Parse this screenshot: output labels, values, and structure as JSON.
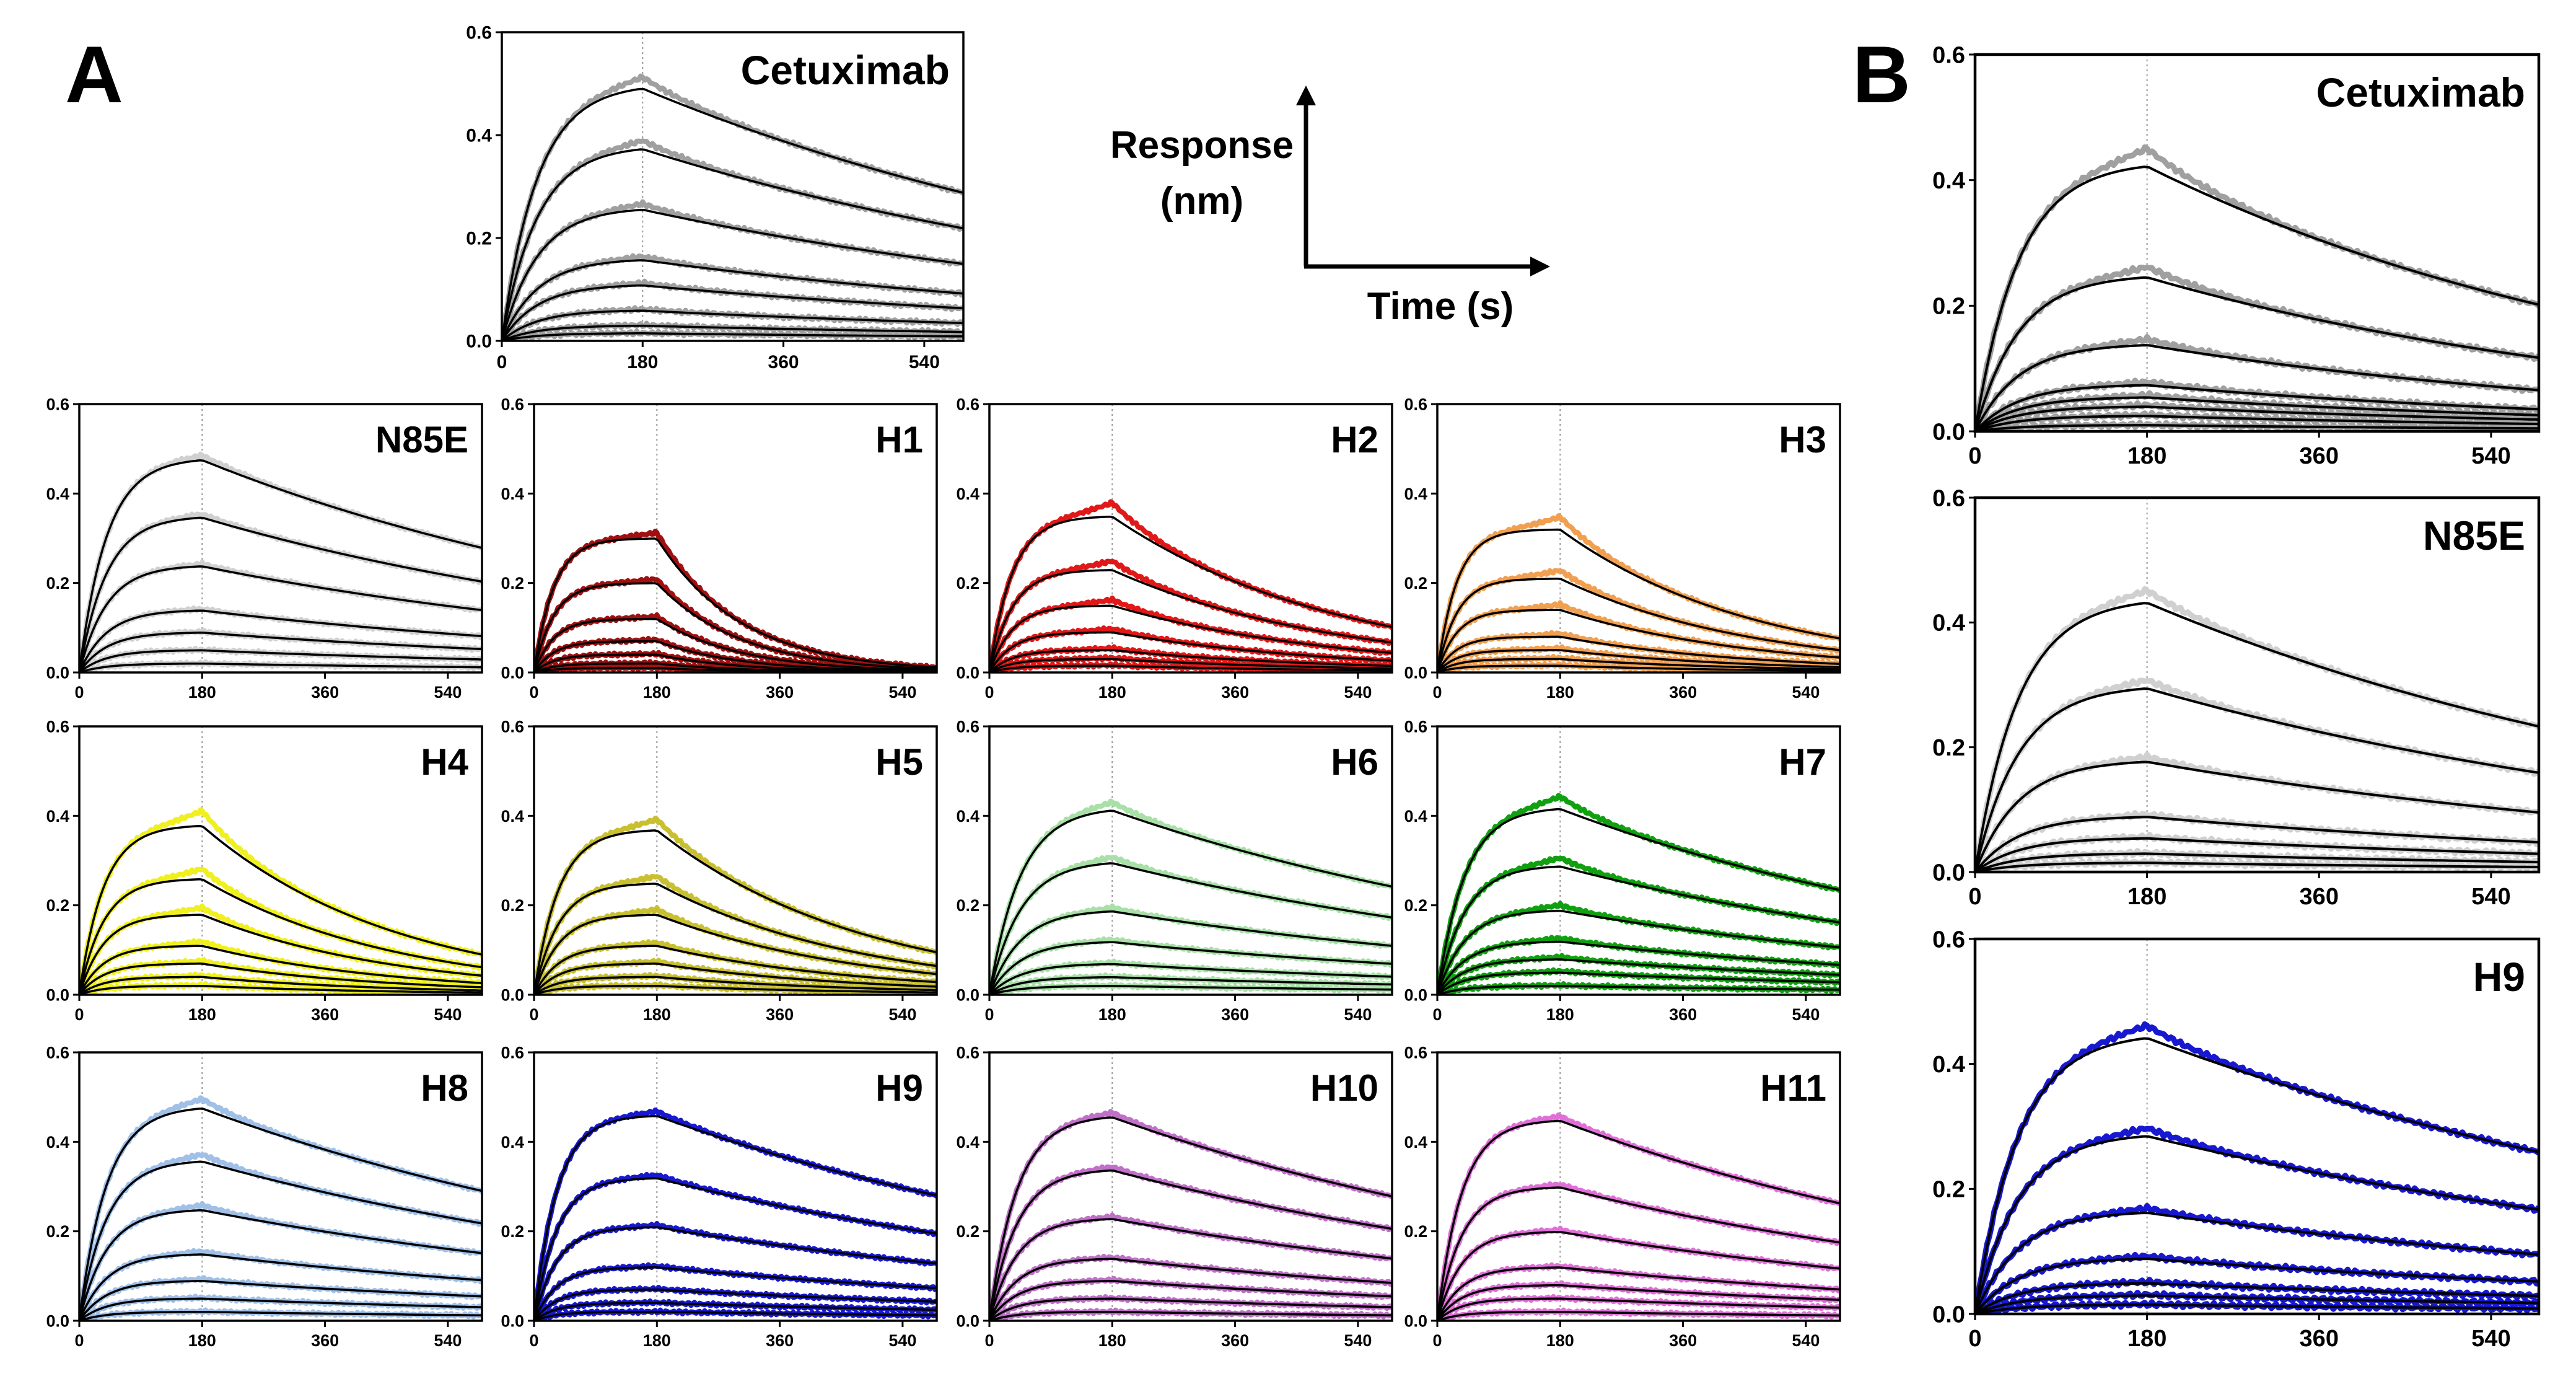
{
  "figure": {
    "panel_a_label": "A",
    "panel_b_label": "B",
    "legend": {
      "y_label_line1": "Response",
      "y_label_line2": "(nm)",
      "x_label": "Time (s)"
    },
    "fit_color": "#000000",
    "guide_color": "#999999"
  },
  "chart_data": [
    {
      "id": "a-cetuximab",
      "type": "line",
      "title": "Cetuximab",
      "color": "#a0a0a0",
      "xlim": [
        0,
        590
      ],
      "ylim": [
        0,
        0.6
      ],
      "x_ticks": [
        "0",
        "180",
        "360",
        "540"
      ],
      "y_ticks": [
        "0.0",
        "0.2",
        "0.4",
        "0.6"
      ],
      "association_end": 180,
      "plateaus": [
        0.5,
        0.38,
        0.26,
        0.16,
        0.11,
        0.06,
        0.03,
        0.015
      ],
      "k_on": 0.022,
      "k_off": 0.0013,
      "overshoot": 0.02
    },
    {
      "id": "a-n85e",
      "type": "line",
      "title": "N85E",
      "color": "#d0d0d0",
      "xlim": [
        0,
        590
      ],
      "ylim": [
        0,
        0.6
      ],
      "x_ticks": [
        "0",
        "180",
        "360",
        "540"
      ],
      "y_ticks": [
        "0.0",
        "0.2",
        "0.4",
        "0.6"
      ],
      "association_end": 180,
      "plateaus": [
        0.48,
        0.35,
        0.24,
        0.14,
        0.09,
        0.05,
        0.02
      ],
      "k_on": 0.025,
      "k_off": 0.0013,
      "overshoot": 0.01
    },
    {
      "id": "a-h1",
      "type": "line",
      "title": "H1",
      "color": "#a01010",
      "xlim": [
        0,
        590
      ],
      "ylim": [
        0,
        0.6
      ],
      "x_ticks": [
        "0",
        "180",
        "360",
        "540"
      ],
      "y_ticks": [
        "0.0",
        "0.2",
        "0.4",
        "0.6"
      ],
      "association_end": 180,
      "plateaus": [
        0.3,
        0.2,
        0.12,
        0.07,
        0.04,
        0.02,
        0.01
      ],
      "k_on": 0.035,
      "k_off": 0.008,
      "overshoot": 0.02
    },
    {
      "id": "a-h2",
      "type": "line",
      "title": "H2",
      "color": "#e01818",
      "xlim": [
        0,
        590
      ],
      "ylim": [
        0,
        0.6
      ],
      "x_ticks": [
        "0",
        "180",
        "360",
        "540"
      ],
      "y_ticks": [
        "0.0",
        "0.2",
        "0.4",
        "0.6"
      ],
      "association_end": 180,
      "plateaus": [
        0.35,
        0.23,
        0.15,
        0.09,
        0.05,
        0.03,
        0.015
      ],
      "k_on": 0.03,
      "k_off": 0.003,
      "overshoot": 0.04
    },
    {
      "id": "a-h3",
      "type": "line",
      "title": "H3",
      "color": "#f0a050",
      "xlim": [
        0,
        590
      ],
      "ylim": [
        0,
        0.6
      ],
      "x_ticks": [
        "0",
        "180",
        "360",
        "540"
      ],
      "y_ticks": [
        "0.0",
        "0.2",
        "0.4",
        "0.6"
      ],
      "association_end": 180,
      "plateaus": [
        0.32,
        0.21,
        0.14,
        0.08,
        0.05,
        0.03,
        0.015
      ],
      "k_on": 0.035,
      "k_off": 0.0035,
      "overshoot": 0.04
    },
    {
      "id": "a-h4",
      "type": "line",
      "title": "H4",
      "color": "#f0f020",
      "xlim": [
        0,
        590
      ],
      "ylim": [
        0,
        0.6
      ],
      "x_ticks": [
        "0",
        "180",
        "360",
        "540"
      ],
      "y_ticks": [
        "0.0",
        "0.2",
        "0.4",
        "0.6"
      ],
      "association_end": 180,
      "plateaus": [
        0.38,
        0.26,
        0.18,
        0.11,
        0.07,
        0.04,
        0.02
      ],
      "k_on": 0.028,
      "k_off": 0.0035,
      "overshoot": 0.04
    },
    {
      "id": "a-h5",
      "type": "line",
      "title": "H5",
      "color": "#c8c030",
      "xlim": [
        0,
        590
      ],
      "ylim": [
        0,
        0.6
      ],
      "x_ticks": [
        "0",
        "180",
        "360",
        "540"
      ],
      "y_ticks": [
        "0.0",
        "0.2",
        "0.4",
        "0.6"
      ],
      "association_end": 180,
      "plateaus": [
        0.37,
        0.25,
        0.18,
        0.11,
        0.07,
        0.04,
        0.02
      ],
      "k_on": 0.028,
      "k_off": 0.0033,
      "overshoot": 0.03
    },
    {
      "id": "a-h6",
      "type": "line",
      "title": "H6",
      "color": "#a8e0a8",
      "xlim": [
        0,
        590
      ],
      "ylim": [
        0,
        0.6
      ],
      "x_ticks": [
        "0",
        "180",
        "360",
        "540"
      ],
      "y_ticks": [
        "0.0",
        "0.2",
        "0.4",
        "0.6"
      ],
      "association_end": 180,
      "plateaus": [
        0.42,
        0.3,
        0.19,
        0.12,
        0.07,
        0.04,
        0.02
      ],
      "k_on": 0.022,
      "k_off": 0.0013,
      "overshoot": 0.02
    },
    {
      "id": "a-h7",
      "type": "line",
      "title": "H7",
      "color": "#10a010",
      "xlim": [
        0,
        590
      ],
      "ylim": [
        0,
        0.6
      ],
      "x_ticks": [
        "0",
        "180",
        "360",
        "540"
      ],
      "y_ticks": [
        "0.0",
        "0.2",
        "0.4",
        "0.6"
      ],
      "association_end": 180,
      "plateaus": [
        0.42,
        0.29,
        0.19,
        0.12,
        0.08,
        0.05,
        0.02
      ],
      "k_on": 0.025,
      "k_off": 0.0014,
      "overshoot": 0.03
    },
    {
      "id": "a-h8",
      "type": "line",
      "title": "H8",
      "color": "#a0c0e8",
      "xlim": [
        0,
        590
      ],
      "ylim": [
        0,
        0.6
      ],
      "x_ticks": [
        "0",
        "180",
        "360",
        "540"
      ],
      "y_ticks": [
        "0.0",
        "0.2",
        "0.4",
        "0.6"
      ],
      "association_end": 180,
      "plateaus": [
        0.48,
        0.36,
        0.25,
        0.15,
        0.09,
        0.05,
        0.02
      ],
      "k_on": 0.025,
      "k_off": 0.0012,
      "overshoot": 0.02
    },
    {
      "id": "a-h9",
      "type": "line",
      "title": "H9",
      "color": "#1818d0",
      "xlim": [
        0,
        590
      ],
      "ylim": [
        0,
        0.6
      ],
      "x_ticks": [
        "0",
        "180",
        "360",
        "540"
      ],
      "y_ticks": [
        "0.0",
        "0.2",
        "0.4",
        "0.6"
      ],
      "association_end": 180,
      "plateaus": [
        0.46,
        0.32,
        0.21,
        0.12,
        0.07,
        0.04,
        0.02
      ],
      "k_on": 0.03,
      "k_off": 0.0012,
      "overshoot": 0.01
    },
    {
      "id": "a-h10",
      "type": "line",
      "title": "H10",
      "color": "#c070c8",
      "xlim": [
        0,
        590
      ],
      "ylim": [
        0,
        0.6
      ],
      "x_ticks": [
        "0",
        "180",
        "360",
        "540"
      ],
      "y_ticks": [
        "0.0",
        "0.2",
        "0.4",
        "0.6"
      ],
      "association_end": 180,
      "plateaus": [
        0.46,
        0.34,
        0.23,
        0.14,
        0.09,
        0.05,
        0.02
      ],
      "k_on": 0.025,
      "k_off": 0.0012,
      "overshoot": 0.01
    },
    {
      "id": "a-h11",
      "type": "line",
      "title": "H11",
      "color": "#e070d8",
      "xlim": [
        0,
        590
      ],
      "ylim": [
        0,
        0.6
      ],
      "x_ticks": [
        "0",
        "180",
        "360",
        "540"
      ],
      "y_ticks": [
        "0.0",
        "0.2",
        "0.4",
        "0.6"
      ],
      "association_end": 180,
      "plateaus": [
        0.45,
        0.3,
        0.2,
        0.12,
        0.08,
        0.05,
        0.02
      ],
      "k_on": 0.028,
      "k_off": 0.0013,
      "overshoot": 0.01
    },
    {
      "id": "b-cetuximab",
      "type": "line",
      "title": "Cetuximab",
      "color": "#a0a0a0",
      "xlim": [
        0,
        590
      ],
      "ylim": [
        0,
        0.6
      ],
      "x_ticks": [
        "0",
        "180",
        "360",
        "540"
      ],
      "y_ticks": [
        "0.0",
        "0.2",
        "0.4",
        "0.6"
      ],
      "association_end": 180,
      "plateaus": [
        0.43,
        0.25,
        0.14,
        0.075,
        0.055,
        0.04,
        0.025,
        0.01
      ],
      "k_on": 0.022,
      "k_off": 0.0018,
      "overshoot": 0.03
    },
    {
      "id": "b-n85e",
      "type": "line",
      "title": "N85E",
      "color": "#d0d0d0",
      "xlim": [
        0,
        590
      ],
      "ylim": [
        0,
        0.6
      ],
      "x_ticks": [
        "0",
        "180",
        "360",
        "540"
      ],
      "y_ticks": [
        "0.0",
        "0.2",
        "0.4",
        "0.6"
      ],
      "association_end": 180,
      "plateaus": [
        0.44,
        0.3,
        0.18,
        0.09,
        0.055,
        0.03,
        0.015
      ],
      "k_on": 0.022,
      "k_off": 0.0015,
      "overshoot": 0.02
    },
    {
      "id": "b-h9",
      "type": "line",
      "title": "H9",
      "color": "#1818d0",
      "xlim": [
        0,
        590
      ],
      "ylim": [
        0,
        0.6
      ],
      "x_ticks": [
        "0",
        "180",
        "360",
        "540"
      ],
      "y_ticks": [
        "0.0",
        "0.2",
        "0.4",
        "0.6"
      ],
      "association_end": 180,
      "plateaus": [
        0.45,
        0.29,
        0.165,
        0.09,
        0.05,
        0.03,
        0.015
      ],
      "k_on": 0.022,
      "k_off": 0.0013,
      "overshoot": 0.02
    }
  ]
}
